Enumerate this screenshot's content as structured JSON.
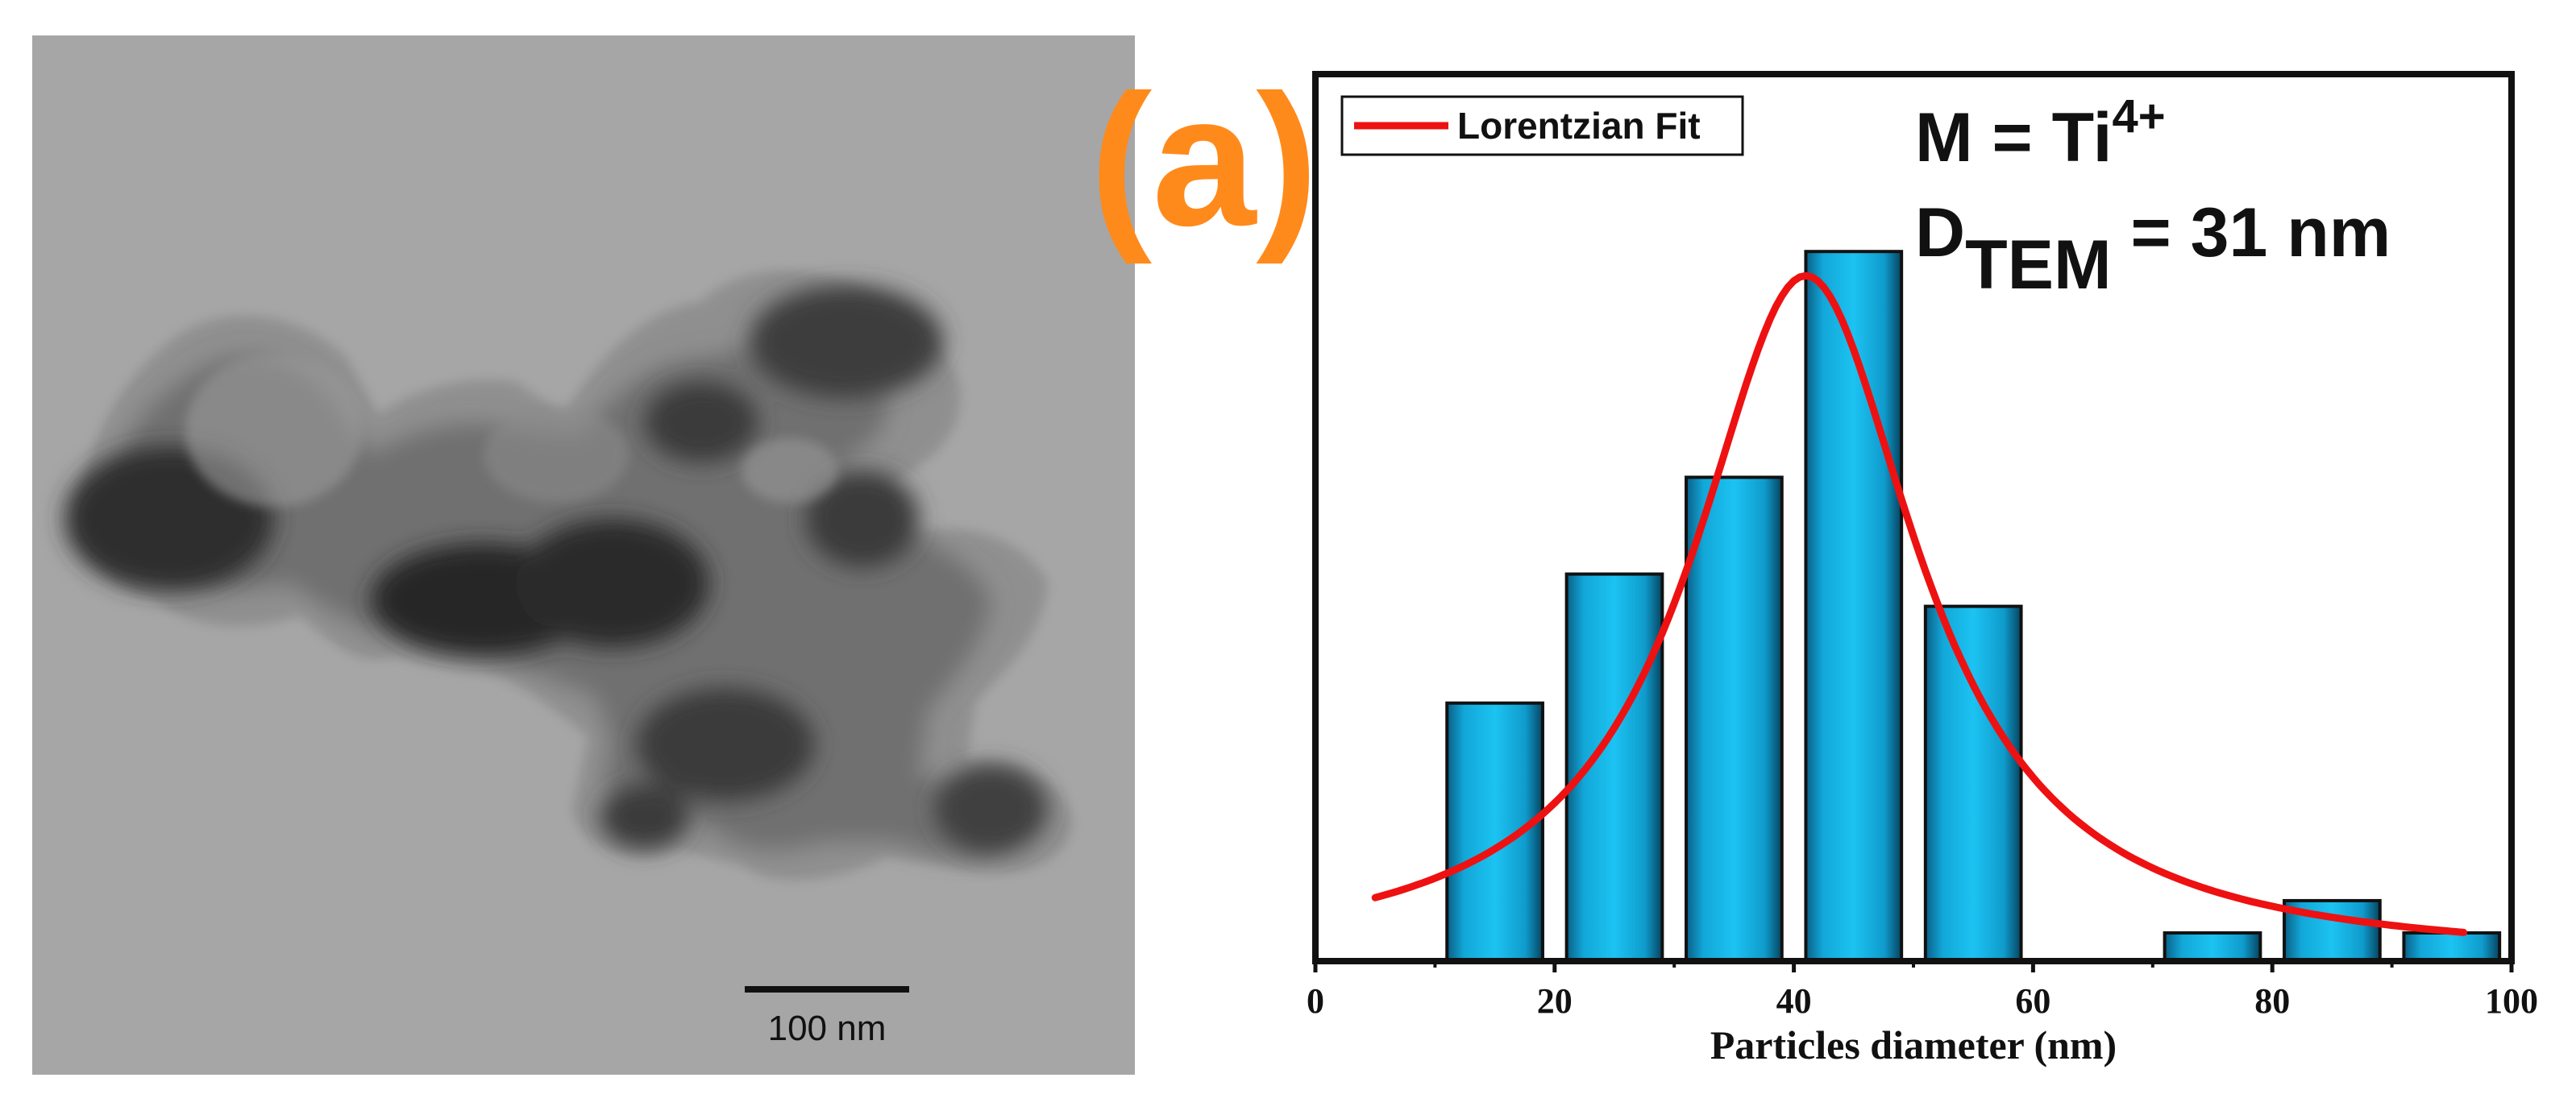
{
  "panel_label": "(a)",
  "tem_image": {
    "scale_bar_label": "100 nm"
  },
  "annotations": {
    "line1_main": "M = Ti",
    "line1_sup": "4+",
    "line2_main": "D",
    "line2_sub": "TEM",
    "line2_rest": " = 31 nm"
  },
  "chart_data": {
    "type": "bar",
    "title": "",
    "xlabel": "Particles diameter  (nm)",
    "ylabel": "",
    "xlim": [
      0,
      100
    ],
    "ylim": [
      0,
      11
    ],
    "xticks": [
      0,
      20,
      40,
      60,
      80,
      100
    ],
    "grid": false,
    "legend_position": "top-left",
    "bin_width": 8,
    "x": [
      15,
      25,
      35,
      45,
      55,
      65,
      75,
      85,
      95
    ],
    "values": [
      3.2,
      4.8,
      6.0,
      8.8,
      4.4,
      0,
      0.35,
      0.75,
      0.35
    ],
    "bar_color": "#12b4e6",
    "fit": {
      "name": "Lorentzian Fit",
      "type": "line",
      "color": "#ee1111",
      "center": 41,
      "fwhm": 23,
      "amplitude": 8.5,
      "x_range": [
        5,
        96
      ]
    }
  }
}
